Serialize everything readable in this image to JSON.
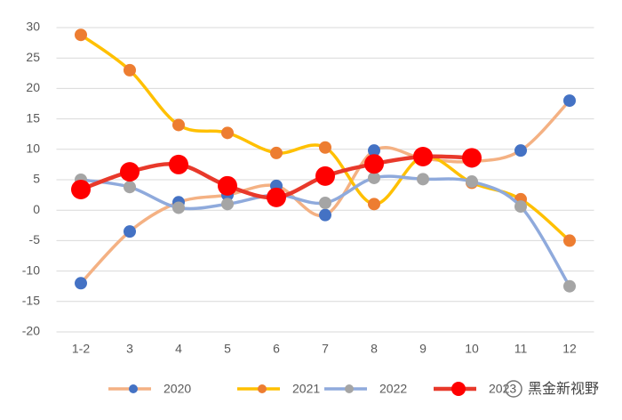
{
  "chart_data": {
    "type": "line",
    "categories": [
      "1-2",
      "3",
      "4",
      "5",
      "6",
      "7",
      "8",
      "9",
      "10",
      "11",
      "12"
    ],
    "series": [
      {
        "name": "2020",
        "color": "#f4b183",
        "marker_color": "#4472c4",
        "values": [
          -12,
          -3.5,
          1.3,
          2.5,
          4,
          -0.8,
          9.8,
          8.5,
          8,
          9.8,
          18
        ]
      },
      {
        "name": "2021",
        "color": "#ffc000",
        "marker_color": "#ed7d31",
        "values": [
          28.8,
          23,
          14,
          12.7,
          9.4,
          10.3,
          1,
          8.8,
          4.5,
          1.8,
          -5
        ]
      },
      {
        "name": "2022",
        "color": "#8faadc",
        "marker_color": "#a5a5a5",
        "values": [
          5,
          3.8,
          0.4,
          1,
          2.5,
          1.2,
          5.3,
          5.1,
          4.7,
          0.6,
          -12.5
        ]
      },
      {
        "name": "2023",
        "color": "#e8392b",
        "marker_color": "#ff0000",
        "values": [
          3.4,
          6.3,
          7.5,
          4,
          2.1,
          5.6,
          7.6,
          8.8,
          8.6,
          null,
          null
        ]
      }
    ],
    "ylim": [
      -20,
      30
    ],
    "yticks": [
      -20,
      -15,
      -10,
      -5,
      0,
      5,
      10,
      15,
      20,
      25,
      30
    ],
    "grid": true,
    "smooth": true,
    "legend": "bottom",
    "watermark": "黑金新视野"
  }
}
